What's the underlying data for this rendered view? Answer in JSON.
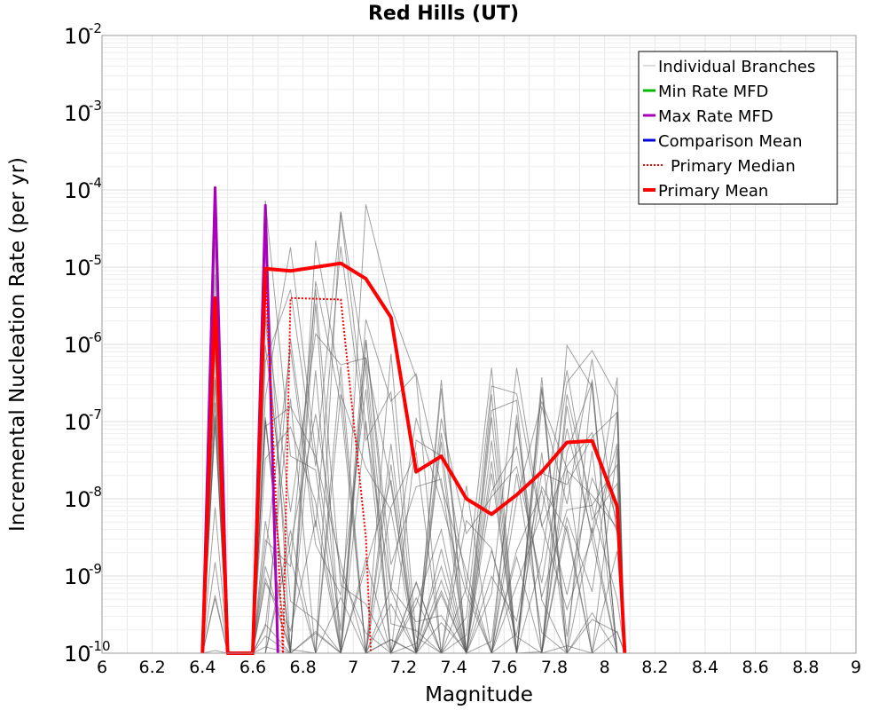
{
  "chart_data": {
    "type": "line",
    "title": "Red Hills (UT)",
    "xlabel": "Magnitude",
    "ylabel": "Incremental Nucleation Rate (per yr)",
    "xlim": [
      6,
      9
    ],
    "ylim_log10": [
      -10,
      -2
    ],
    "y_scale": "log",
    "x_ticks": [
      "6",
      "6.2",
      "6.4",
      "6.6",
      "6.8",
      "7",
      "7.2",
      "7.4",
      "7.6",
      "7.8",
      "8",
      "8.2",
      "8.4",
      "8.6",
      "8.8",
      "9"
    ],
    "y_tick_base": "10",
    "y_tick_exponents": [
      "-10",
      "-9",
      "-8",
      "-7",
      "-6",
      "-5",
      "-4",
      "-3",
      "-2"
    ],
    "grid": true,
    "legend_position": "top-right",
    "colors": {
      "individual": "#555555",
      "min_rate": "#00bb00",
      "max_rate": "#aa00bb",
      "comparison_mean": "#0000dd",
      "primary_median": "#ff0000",
      "primary_mean": "#ff0000"
    },
    "legend": [
      {
        "key": "individual",
        "label": "Individual Branches",
        "style": "thin"
      },
      {
        "key": "min_rate",
        "label": "Min Rate MFD",
        "style": "solid"
      },
      {
        "key": "max_rate",
        "label": "Max Rate MFD",
        "style": "solid"
      },
      {
        "key": "comparison_mean",
        "label": "Comparison Mean",
        "style": "solid"
      },
      {
        "key": "primary_median",
        "label": "Primary Median",
        "style": "dotted"
      },
      {
        "key": "primary_mean",
        "label": "Primary Mean",
        "style": "thick"
      }
    ],
    "series": [
      {
        "name": "Max Rate MFD",
        "key": "max_rate",
        "x": [
          6.4,
          6.45,
          6.5,
          6.6,
          6.65,
          6.7
        ],
        "log10_y": [
          -10,
          -3.97,
          -10,
          -10,
          -4.2,
          -10
        ]
      },
      {
        "name": "Primary Median",
        "key": "primary_median",
        "x": [
          6.4,
          6.45,
          6.5,
          6.6,
          6.65,
          6.72,
          6.75,
          6.95,
          7.05,
          7.07
        ],
        "log10_y": [
          -10,
          -5.4,
          -10,
          -10,
          -5.05,
          -10,
          -5.4,
          -5.42,
          -8.5,
          -10
        ]
      },
      {
        "name": "Primary Mean",
        "key": "primary_mean",
        "x": [
          6.4,
          6.45,
          6.5,
          6.6,
          6.65,
          6.75,
          6.85,
          6.95,
          7.05,
          7.15,
          7.25,
          7.35,
          7.45,
          7.55,
          7.65,
          7.75,
          7.85,
          7.95,
          8.05,
          8.08
        ],
        "log10_y": [
          -10,
          -5.4,
          -10,
          -10,
          -5.02,
          -5.05,
          -5.0,
          -4.95,
          -5.15,
          -5.65,
          -7.65,
          -7.45,
          -8.0,
          -8.2,
          -7.95,
          -7.65,
          -7.27,
          -7.25,
          -8.1,
          -10
        ]
      }
    ],
    "individual_branches": {
      "count": 26,
      "x": [
        6.4,
        6.45,
        6.5,
        6.6,
        6.65,
        6.75,
        6.85,
        6.95,
        7.05,
        7.15,
        7.25,
        7.35,
        7.45,
        7.55,
        7.65,
        7.75,
        7.85,
        7.95,
        8.05,
        8.08
      ],
      "log10_y_upper_envelope": [
        -10,
        -4.3,
        -10,
        -10,
        -3.95,
        -3.95,
        -4.05,
        -4.1,
        -4.15,
        -5.4,
        -6.3,
        -6.3,
        -7.3,
        -6.1,
        -6.2,
        -6.0,
        -5.95,
        -5.9,
        -6.3,
        -10
      ]
    }
  }
}
